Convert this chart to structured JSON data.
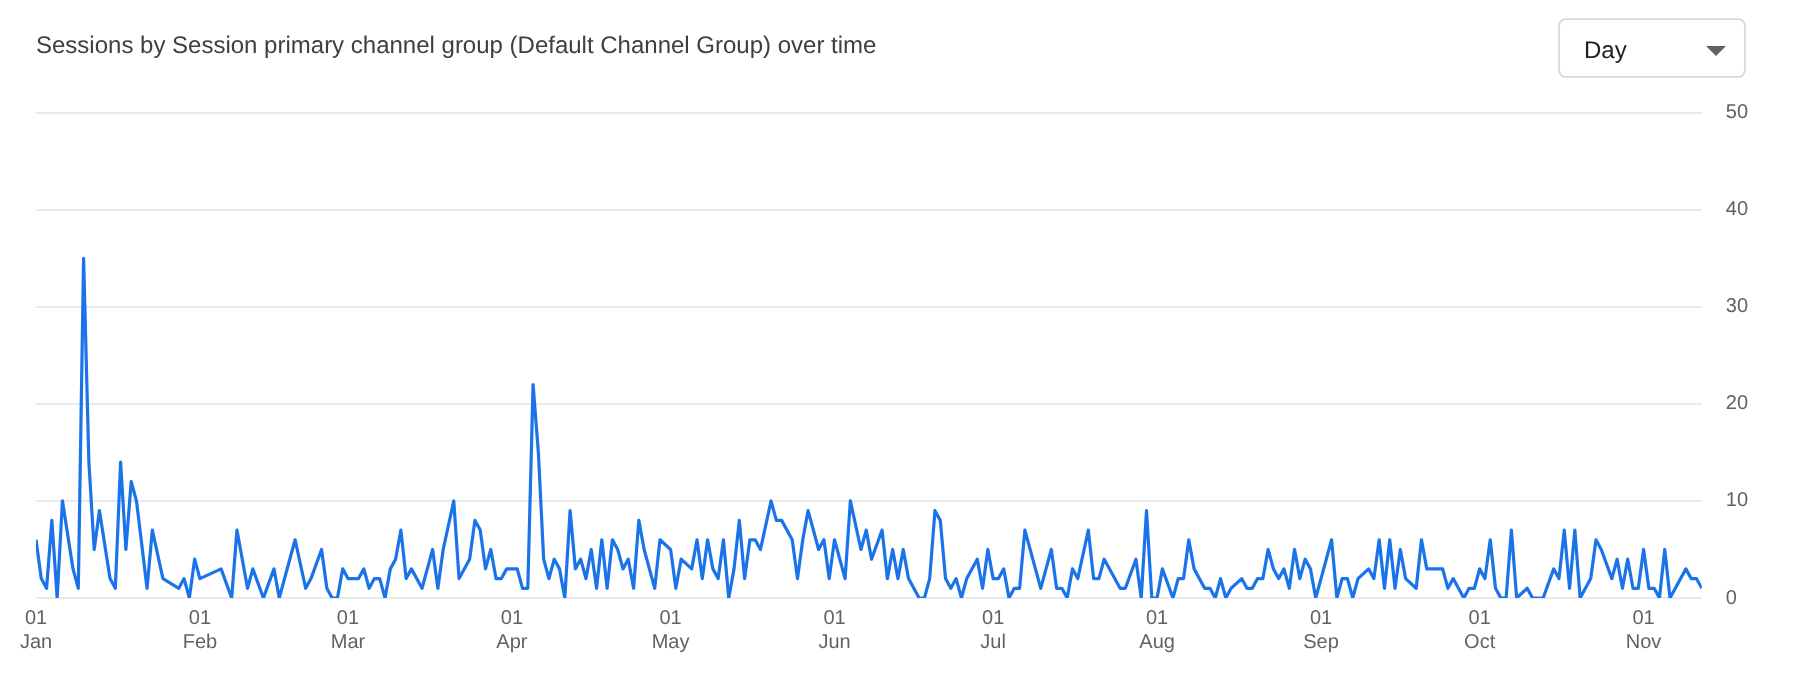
{
  "chart_data": {
    "type": "line",
    "title": "Sessions by Session primary channel group (Default Channel Group) over time",
    "annotations": [
      "Day"
    ],
    "x": [
      "--01-01",
      "--01-02",
      "--01-03",
      "--01-04",
      "--01-05",
      "--01-06",
      "--01-08",
      "--01-09",
      "--01-10",
      "--01-11",
      "--01-12",
      "--01-13",
      "--01-15",
      "--01-16",
      "--01-17",
      "--01-18",
      "--01-19",
      "--01-20",
      "--01-22",
      "--01-23",
      "--01-25",
      "--01-28",
      "--01-29",
      "--01-30",
      "--01-31",
      "--02-01",
      "--02-05",
      "--02-07",
      "--02-08",
      "--02-10",
      "--02-11",
      "--02-13",
      "--02-15",
      "--02-16",
      "--02-19",
      "--02-21",
      "--02-22",
      "--02-24",
      "--02-25",
      "--02-26",
      "--02-27",
      "--02-28",
      "--03-01",
      "--03-03",
      "--03-04",
      "--03-05",
      "--03-06",
      "--03-07",
      "--03-08",
      "--03-09",
      "--03-10",
      "--03-11",
      "--03-12",
      "--03-13",
      "--03-15",
      "--03-17",
      "--03-18",
      "--03-19",
      "--03-21",
      "--03-22",
      "--03-24",
      "--03-25",
      "--03-26",
      "--03-27",
      "--03-28",
      "--03-29",
      "--03-30",
      "--03-31",
      "--04-02",
      "--04-03",
      "--04-04",
      "--04-05",
      "--04-06",
      "--04-07",
      "--04-08",
      "--04-09",
      "--04-10",
      "--04-11",
      "--04-12",
      "--04-13",
      "--04-14",
      "--04-15",
      "--04-16",
      "--04-17",
      "--04-18",
      "--04-19",
      "--04-20",
      "--04-21",
      "--04-22",
      "--04-23",
      "--04-24",
      "--04-25",
      "--04-26",
      "--04-27",
      "--04-28",
      "--04-29",
      "--05-01",
      "--05-02",
      "--05-03",
      "--05-05",
      "--05-06",
      "--05-07",
      "--05-08",
      "--05-09",
      "--05-10",
      "--05-11",
      "--05-12",
      "--05-13",
      "--05-14",
      "--05-15",
      "--05-16",
      "--05-17",
      "--05-18",
      "--05-20",
      "--05-21",
      "--05-22",
      "--05-24",
      "--05-25",
      "--05-26",
      "--05-27",
      "--05-29",
      "--05-30",
      "--05-31",
      "--06-01",
      "--06-02",
      "--06-03",
      "--06-04",
      "--06-06",
      "--06-07",
      "--06-08",
      "--06-10",
      "--06-11",
      "--06-12",
      "--06-13",
      "--06-14",
      "--06-15",
      "--06-17",
      "--06-18",
      "--06-19",
      "--06-20",
      "--06-21",
      "--06-22",
      "--06-23",
      "--06-24",
      "--06-25",
      "--06-26",
      "--06-28",
      "--06-29",
      "--06-30",
      "--07-01",
      "--07-02",
      "--07-03",
      "--07-04",
      "--07-05",
      "--07-06",
      "--07-07",
      "--07-09",
      "--07-10",
      "--07-12",
      "--07-13",
      "--07-14",
      "--07-15",
      "--07-16",
      "--07-17",
      "--07-19",
      "--07-20",
      "--07-21",
      "--07-22",
      "--07-24",
      "--07-25",
      "--07-26",
      "--07-28",
      "--07-29",
      "--07-30",
      "--07-31",
      "--08-01",
      "--08-02",
      "--08-04",
      "--08-05",
      "--08-06",
      "--08-07",
      "--08-08",
      "--08-10",
      "--08-11",
      "--08-12",
      "--08-13",
      "--08-14",
      "--08-15",
      "--08-17",
      "--08-18",
      "--08-19",
      "--08-20",
      "--08-21",
      "--08-22",
      "--08-23",
      "--08-24",
      "--08-25",
      "--08-26",
      "--08-27",
      "--08-28",
      "--08-29",
      "--08-30",
      "--08-31",
      "--09-01",
      "--09-03",
      "--09-04",
      "--09-05",
      "--09-06",
      "--09-07",
      "--09-08",
      "--09-10",
      "--09-11",
      "--09-12",
      "--09-13",
      "--09-14",
      "--09-15",
      "--09-16",
      "--09-17",
      "--09-19",
      "--09-20",
      "--09-21",
      "--09-22",
      "--09-24",
      "--09-25",
      "--09-26",
      "--09-27",
      "--09-28",
      "--09-29",
      "--09-30",
      "--10-01",
      "--10-02",
      "--10-03",
      "--10-04",
      "--10-05",
      "--10-06",
      "--10-07",
      "--10-08",
      "--10-10",
      "--10-11",
      "--10-13",
      "--10-15",
      "--10-16",
      "--10-17",
      "--10-18",
      "--10-19",
      "--10-20",
      "--10-22",
      "--10-23",
      "--10-24",
      "--10-26",
      "--10-27",
      "--10-28",
      "--10-29",
      "--10-30",
      "--10-31",
      "--11-01",
      "--11-02",
      "--11-03",
      "--11-04",
      "--11-05",
      "--11-06",
      "--11-07",
      "--11-09",
      "--11-10",
      "--11-11",
      "--11-12"
    ],
    "series": [
      {
        "color": "#1a73e8",
        "values": [
          6,
          2,
          1,
          8,
          0,
          10,
          3,
          1,
          35,
          14,
          5,
          9,
          2,
          1,
          14,
          5,
          12,
          10,
          1,
          7,
          2,
          1,
          2,
          0,
          4,
          2,
          3,
          0,
          7,
          1,
          3,
          0,
          3,
          0,
          6,
          1,
          2,
          5,
          1,
          0,
          0,
          3,
          2,
          2,
          3,
          1,
          2,
          2,
          0,
          3,
          4,
          7,
          2,
          3,
          1,
          5,
          1,
          5,
          10,
          2,
          4,
          8,
          7,
          3,
          5,
          2,
          2,
          3,
          3,
          1,
          1,
          22,
          15,
          4,
          2,
          4,
          3,
          0,
          9,
          3,
          4,
          2,
          5,
          1,
          6,
          1,
          6,
          5,
          3,
          4,
          1,
          8,
          5,
          3,
          1,
          6,
          5,
          1,
          4,
          3,
          6,
          2,
          6,
          3,
          2,
          6,
          0,
          3,
          8,
          2,
          6,
          6,
          5,
          10,
          8,
          8,
          6,
          2,
          6,
          9,
          5,
          6,
          2,
          6,
          4,
          2,
          10,
          5,
          7,
          4,
          7,
          2,
          5,
          2,
          5,
          2,
          0,
          0,
          2,
          9,
          8,
          2,
          1,
          2,
          0,
          2,
          4,
          1,
          5,
          2,
          2,
          3,
          0,
          1,
          1,
          7,
          3,
          1,
          5,
          1,
          1,
          0,
          3,
          2,
          7,
          2,
          2,
          4,
          2,
          1,
          1,
          4,
          0,
          9,
          0,
          0,
          3,
          0,
          2,
          2,
          6,
          3,
          1,
          1,
          0,
          2,
          0,
          1,
          2,
          1,
          1,
          2,
          2,
          5,
          3,
          2,
          3,
          1,
          5,
          2,
          4,
          3,
          0,
          2,
          6,
          0,
          2,
          2,
          0,
          2,
          3,
          2,
          6,
          1,
          6,
          1,
          5,
          2,
          1,
          6,
          3,
          3,
          3,
          1,
          2,
          1,
          0,
          1,
          1,
          3,
          2,
          6,
          1,
          0,
          0,
          7,
          0,
          1,
          0,
          0,
          3,
          2,
          7,
          1,
          7,
          0,
          2,
          6,
          5,
          2,
          4,
          1,
          4,
          1,
          1,
          5,
          1,
          1,
          0,
          5,
          0,
          1,
          3,
          2,
          2,
          1
        ]
      }
    ],
    "xlim": [
      "--01-01",
      "--11-12"
    ],
    "xticks": [
      {
        "value": "--01-01",
        "label": "01\nJan"
      },
      {
        "value": "--02-01",
        "label": "01\nFeb"
      },
      {
        "value": "--03-01",
        "label": "01\nMar"
      },
      {
        "value": "--04-01",
        "label": "01\nApr"
      },
      {
        "value": "--05-01",
        "label": "01\nMay"
      },
      {
        "value": "--06-01",
        "label": "01\nJun"
      },
      {
        "value": "--07-01",
        "label": "01\nJul"
      },
      {
        "value": "--08-01",
        "label": "01\nAug"
      },
      {
        "value": "--09-01",
        "label": "01\nSep"
      },
      {
        "value": "--10-01",
        "label": "01\nOct"
      },
      {
        "value": "--11-01",
        "label": "01\nNov"
      }
    ],
    "ylim": [
      0,
      50
    ],
    "yticks": [
      0,
      10,
      20,
      30,
      40,
      50
    ],
    "grid": "y",
    "legend": false,
    "marker": "none",
    "line_style": "solid"
  }
}
